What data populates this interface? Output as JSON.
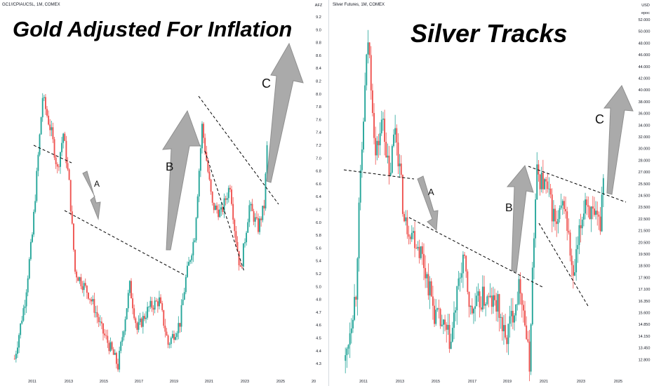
{
  "colors": {
    "up": "#26a69a",
    "down": "#ef5350",
    "arrow_fill": "#a6a6a6",
    "arrow_stroke": "#8a8a8a",
    "trendline": "#000000"
  },
  "left": {
    "symbol": "GC1!/CPIAUCSL, 1M, COMEX",
    "title": "Gold Adjusted For Inflation",
    "axis_unit": "AFZ",
    "x_ticks": [
      "2011",
      "2013",
      "2015",
      "2017",
      "2019",
      "2021",
      "2023",
      "2025",
      "20"
    ],
    "y_ticks": [
      "9.2",
      "9.0",
      "8.8",
      "8.6",
      "8.4",
      "8.2",
      "8.0",
      "7.8",
      "7.6",
      "7.4",
      "7.2",
      "7.0",
      "6.8",
      "6.6",
      "6.4",
      "6.2",
      "6.0",
      "5.8",
      "5.6",
      "5.4",
      "5.2",
      "5.0",
      "4.8",
      "4.7",
      "4.6",
      "4.5",
      "4.4",
      "4.3"
    ],
    "annotations": [
      "A",
      "B",
      "C"
    ]
  },
  "right": {
    "symbol": "Silver Futures, 1M, COMEX",
    "title": "Silver Tracks",
    "axis_unit": "USD",
    "axis_subunit": "epoc",
    "x_ticks": [
      "2011",
      "2013",
      "2015",
      "2017",
      "2019",
      "2021",
      "2023",
      "2025"
    ],
    "y_ticks": [
      "52.000",
      "50.000",
      "48.000",
      "46.000",
      "44.000",
      "42.000",
      "40.000",
      "38.000",
      "36.000",
      "34.000",
      "32.000",
      "30.000",
      "28.000",
      "27.000",
      "25.500",
      "24.500",
      "23.500",
      "22.500",
      "21.500",
      "20.500",
      "19.500",
      "18.500",
      "17.900",
      "17.100",
      "16.350",
      "15.600",
      "14.850",
      "14.150",
      "13.450",
      "12.800"
    ],
    "annotations": [
      "A",
      "B",
      "C"
    ]
  },
  "chart_data": [
    {
      "type": "candlestick",
      "title": "Gold Adjusted For Inflation",
      "series_label": "GC1!/CPIAUCSL, 1M, COMEX",
      "x_ticks": [
        "2011",
        "2013",
        "2015",
        "2017",
        "2019",
        "2021",
        "2023",
        "2025"
      ],
      "ylim": [
        4.3,
        9.2
      ],
      "keypoints": [
        {
          "date": "2010-01",
          "value": 4.5
        },
        {
          "date": "2010-08",
          "value": 5.3
        },
        {
          "date": "2011-01",
          "value": 6.2
        },
        {
          "date": "2011-08",
          "value": 8.1
        },
        {
          "date": "2012-02",
          "value": 7.6
        },
        {
          "date": "2012-06",
          "value": 7.1
        },
        {
          "date": "2012-10",
          "value": 7.6
        },
        {
          "date": "2013-02",
          "value": 6.9
        },
        {
          "date": "2013-06",
          "value": 5.7
        },
        {
          "date": "2013-09",
          "value": 5.6
        },
        {
          "date": "2014-03",
          "value": 5.4
        },
        {
          "date": "2014-07",
          "value": 5.2
        },
        {
          "date": "2014-12",
          "value": 4.9
        },
        {
          "date": "2015-07",
          "value": 4.6
        },
        {
          "date": "2015-11",
          "value": 4.4
        },
        {
          "date": "2016-07",
          "value": 5.5
        },
        {
          "date": "2016-12",
          "value": 4.9
        },
        {
          "date": "2017-08",
          "value": 5.2
        },
        {
          "date": "2018-03",
          "value": 5.3
        },
        {
          "date": "2018-09",
          "value": 4.7
        },
        {
          "date": "2019-05",
          "value": 5.0
        },
        {
          "date": "2019-09",
          "value": 5.6
        },
        {
          "date": "2020-03",
          "value": 6.2
        },
        {
          "date": "2020-08",
          "value": 7.7
        },
        {
          "date": "2021-03",
          "value": 6.6
        },
        {
          "date": "2021-09",
          "value": 6.5
        },
        {
          "date": "2022-03",
          "value": 6.9
        },
        {
          "date": "2022-06",
          "value": 6.3
        },
        {
          "date": "2022-10",
          "value": 5.7
        },
        {
          "date": "2023-04",
          "value": 6.6
        },
        {
          "date": "2023-10",
          "value": 6.3
        },
        {
          "date": "2024-02",
          "value": 6.6
        },
        {
          "date": "2024-04",
          "value": 7.4
        }
      ],
      "annotations": [
        "A",
        "B",
        "C"
      ]
    },
    {
      "type": "candlestick",
      "title": "Silver Tracks",
      "series_label": "Silver Futures, 1M, COMEX",
      "x_ticks": [
        "2011",
        "2013",
        "2015",
        "2017",
        "2019",
        "2021",
        "2023",
        "2025"
      ],
      "ylim": [
        12.8,
        52.0
      ],
      "keypoints": [
        {
          "date": "2010-01",
          "value": 13.2
        },
        {
          "date": "2010-08",
          "value": 17.5
        },
        {
          "date": "2010-12",
          "value": 30.5
        },
        {
          "date": "2011-04",
          "value": 48.0
        },
        {
          "date": "2011-09",
          "value": 30.0
        },
        {
          "date": "2012-02",
          "value": 35.0
        },
        {
          "date": "2012-06",
          "value": 27.0
        },
        {
          "date": "2012-10",
          "value": 34.0
        },
        {
          "date": "2013-04",
          "value": 23.0
        },
        {
          "date": "2013-08",
          "value": 22.5
        },
        {
          "date": "2014-03",
          "value": 20.5
        },
        {
          "date": "2014-12",
          "value": 16.0
        },
        {
          "date": "2015-11",
          "value": 14.2
        },
        {
          "date": "2016-07",
          "value": 20.0
        },
        {
          "date": "2016-12",
          "value": 16.0
        },
        {
          "date": "2017-08",
          "value": 17.0
        },
        {
          "date": "2018-06",
          "value": 16.5
        },
        {
          "date": "2018-11",
          "value": 14.2
        },
        {
          "date": "2019-09",
          "value": 18.0
        },
        {
          "date": "2020-03",
          "value": 12.8
        },
        {
          "date": "2020-08",
          "value": 28.0
        },
        {
          "date": "2021-02",
          "value": 26.5
        },
        {
          "date": "2021-09",
          "value": 22.5
        },
        {
          "date": "2022-02",
          "value": 25.0
        },
        {
          "date": "2022-08",
          "value": 18.0
        },
        {
          "date": "2023-04",
          "value": 25.5
        },
        {
          "date": "2023-10",
          "value": 23.0
        },
        {
          "date": "2024-02",
          "value": 23.0
        },
        {
          "date": "2024-04",
          "value": 28.5
        }
      ],
      "annotations": [
        "A",
        "B",
        "C"
      ]
    }
  ]
}
